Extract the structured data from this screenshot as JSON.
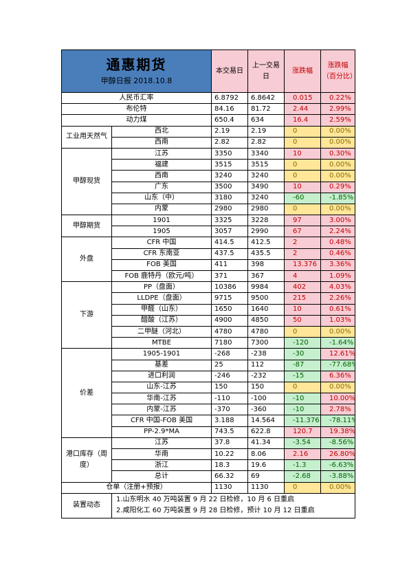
{
  "header": {
    "title": "通惠期货",
    "subtitle": "甲醇日报 2018.10.8",
    "col_today": "本交易日",
    "col_prev": "上一交易日",
    "col_change": "涨跌幅",
    "col_pct": "涨跌幅（百分比）"
  },
  "rows": [
    {
      "group": "",
      "label": "人民币汇率",
      "today": "6.8792",
      "prev": "6.8642",
      "chg": "0.015",
      "pct": "0.22%",
      "dir": "up"
    },
    {
      "group": "",
      "label": "布伦特",
      "today": "84.16",
      "prev": "81.72",
      "chg": "2.44",
      "pct": "2.99%",
      "dir": "up"
    },
    {
      "group": "",
      "label": "动力煤",
      "today": "650.4",
      "prev": "634",
      "chg": "16.4",
      "pct": "2.59%",
      "dir": "up"
    },
    {
      "group": "工业用天然气",
      "label": "西北",
      "today": "2.19",
      "prev": "2.19",
      "chg": "0",
      "pct": "0.00%",
      "dir": "zero"
    },
    {
      "group": "",
      "label": "西南",
      "today": "2.82",
      "prev": "2.82",
      "chg": "0",
      "pct": "0.00%",
      "dir": "zero"
    },
    {
      "group": "甲醇现货",
      "label": "江苏",
      "today": "3350",
      "prev": "3340",
      "chg": "10",
      "pct": "0.30%",
      "dir": "up"
    },
    {
      "group": "",
      "label": "福建",
      "today": "3515",
      "prev": "3515",
      "chg": "0",
      "pct": "0.00%",
      "dir": "zero"
    },
    {
      "group": "",
      "label": "西南",
      "today": "3240",
      "prev": "3240",
      "chg": "0",
      "pct": "0.00%",
      "dir": "zero"
    },
    {
      "group": "",
      "label": "广东",
      "today": "3500",
      "prev": "3490",
      "chg": "10",
      "pct": "0.29%",
      "dir": "up"
    },
    {
      "group": "",
      "label": "山东（中）",
      "today": "3180",
      "prev": "3240",
      "chg": "-60",
      "pct": "-1.85%",
      "dir": "down"
    },
    {
      "group": "",
      "label": "内蒙",
      "today": "2980",
      "prev": "2980",
      "chg": "0",
      "pct": "0.00%",
      "dir": "zero"
    },
    {
      "group": "甲醇期货",
      "label": "1901",
      "today": "3325",
      "prev": "3228",
      "chg": "97",
      "pct": "3.00%",
      "dir": "up"
    },
    {
      "group": "",
      "label": "1905",
      "today": "3057",
      "prev": "2990",
      "chg": "67",
      "pct": "2.24%",
      "dir": "up"
    },
    {
      "group": "外盘",
      "label": "CFR 中国",
      "today": "414.5",
      "prev": "412.5",
      "chg": "2",
      "pct": "0.48%",
      "dir": "up"
    },
    {
      "group": "",
      "label": "CFR 东南亚",
      "today": "437.5",
      "prev": "435.5",
      "chg": "2",
      "pct": "0.46%",
      "dir": "up"
    },
    {
      "group": "",
      "label": "FOB 美国",
      "today": "411",
      "prev": "398",
      "chg": "13.376",
      "pct": "3.36%",
      "dir": "up"
    },
    {
      "group": "",
      "label": "FOB 鹿特丹（欧元/吨）",
      "today": "371",
      "prev": "367",
      "chg": "4",
      "pct": "1.09%",
      "dir": "up"
    },
    {
      "group": "下游",
      "label": "PP（盘面）",
      "today": "10386",
      "prev": "9984",
      "chg": "402",
      "pct": "4.03%",
      "dir": "up"
    },
    {
      "group": "",
      "label": "LLDPE（盘面）",
      "today": "9715",
      "prev": "9500",
      "chg": "215",
      "pct": "2.26%",
      "dir": "up"
    },
    {
      "group": "",
      "label": "甲醛（山东）",
      "today": "1650",
      "prev": "1640",
      "chg": "10",
      "pct": "0.61%",
      "dir": "up"
    },
    {
      "group": "",
      "label": "醋酸（江苏）",
      "today": "4900",
      "prev": "4850",
      "chg": "50",
      "pct": "1.03%",
      "dir": "up"
    },
    {
      "group": "",
      "label": "二甲醚（河北）",
      "today": "4780",
      "prev": "4780",
      "chg": "0",
      "pct": "0.00%",
      "dir": "zero"
    },
    {
      "group": "",
      "label": "MTBE",
      "today": "7180",
      "prev": "7300",
      "chg": "-120",
      "pct": "-1.64%",
      "dir": "down"
    },
    {
      "group": "价差",
      "label": "1905-1901",
      "today": "-268",
      "prev": "-238",
      "chg": "-30",
      "pct": "12.61%",
      "dir": "up",
      "chgdir": "down"
    },
    {
      "group": "",
      "label": "基差",
      "today": "25",
      "prev": "112",
      "chg": "-87",
      "pct": "-77.68%",
      "dir": "down"
    },
    {
      "group": "",
      "label": "进口利润",
      "today": "-246",
      "prev": "-232",
      "chg": "-15",
      "pct": "6.36%",
      "dir": "up",
      "chgdir": "down"
    },
    {
      "group": "",
      "label": "山东-江苏",
      "today": "150",
      "prev": "150",
      "chg": "0",
      "pct": "0.00%",
      "dir": "zero"
    },
    {
      "group": "",
      "label": "华南-江苏",
      "today": "-110",
      "prev": "-100",
      "chg": "-10",
      "pct": "10.00%",
      "dir": "up",
      "chgdir": "down"
    },
    {
      "group": "",
      "label": "内蒙-江苏",
      "today": "-370",
      "prev": "-360",
      "chg": "-10",
      "pct": "2.78%",
      "dir": "up",
      "chgdir": "down"
    },
    {
      "group": "",
      "label": "CFR 中国-FOB 美国",
      "today": "3.188",
      "prev": "14.564",
      "chg": "-11.376",
      "pct": "-78.11%",
      "dir": "down"
    },
    {
      "group": "",
      "label": "PP-2.9*MA",
      "today": "743.5",
      "prev": "622.8",
      "chg": "120.7",
      "pct": "19.38%",
      "dir": "up"
    },
    {
      "group": "港口库存（周度）",
      "label": "江苏",
      "today": "37.8",
      "prev": "41.34",
      "chg": "-3.54",
      "pct": "-8.56%",
      "dir": "down"
    },
    {
      "group": "",
      "label": "华南",
      "today": "10.22",
      "prev": "8.06",
      "chg": "2.16",
      "pct": "26.80%",
      "dir": "up"
    },
    {
      "group": "",
      "label": "浙江",
      "today": "18.3",
      "prev": "19.6",
      "chg": "-1.3",
      "pct": "-6.63%",
      "dir": "down"
    },
    {
      "group": "",
      "label": "总计",
      "today": "66.32",
      "prev": "69",
      "chg": "-2.68",
      "pct": "-3.88%",
      "dir": "down"
    },
    {
      "group": "",
      "label": "仓单（注册+预报）",
      "today": "1130",
      "prev": "1130",
      "chg": "0",
      "pct": "0.00%",
      "dir": "zero"
    }
  ],
  "devices": {
    "label": "装置动态",
    "line1": "1.山东明水 40 万吨装置 9 月 22 日检修，10 月 6 日重启",
    "line2": "2.咸阳化工 60 万吨装置 9 月 28 日检修，预计 10 月 12 日重启"
  }
}
